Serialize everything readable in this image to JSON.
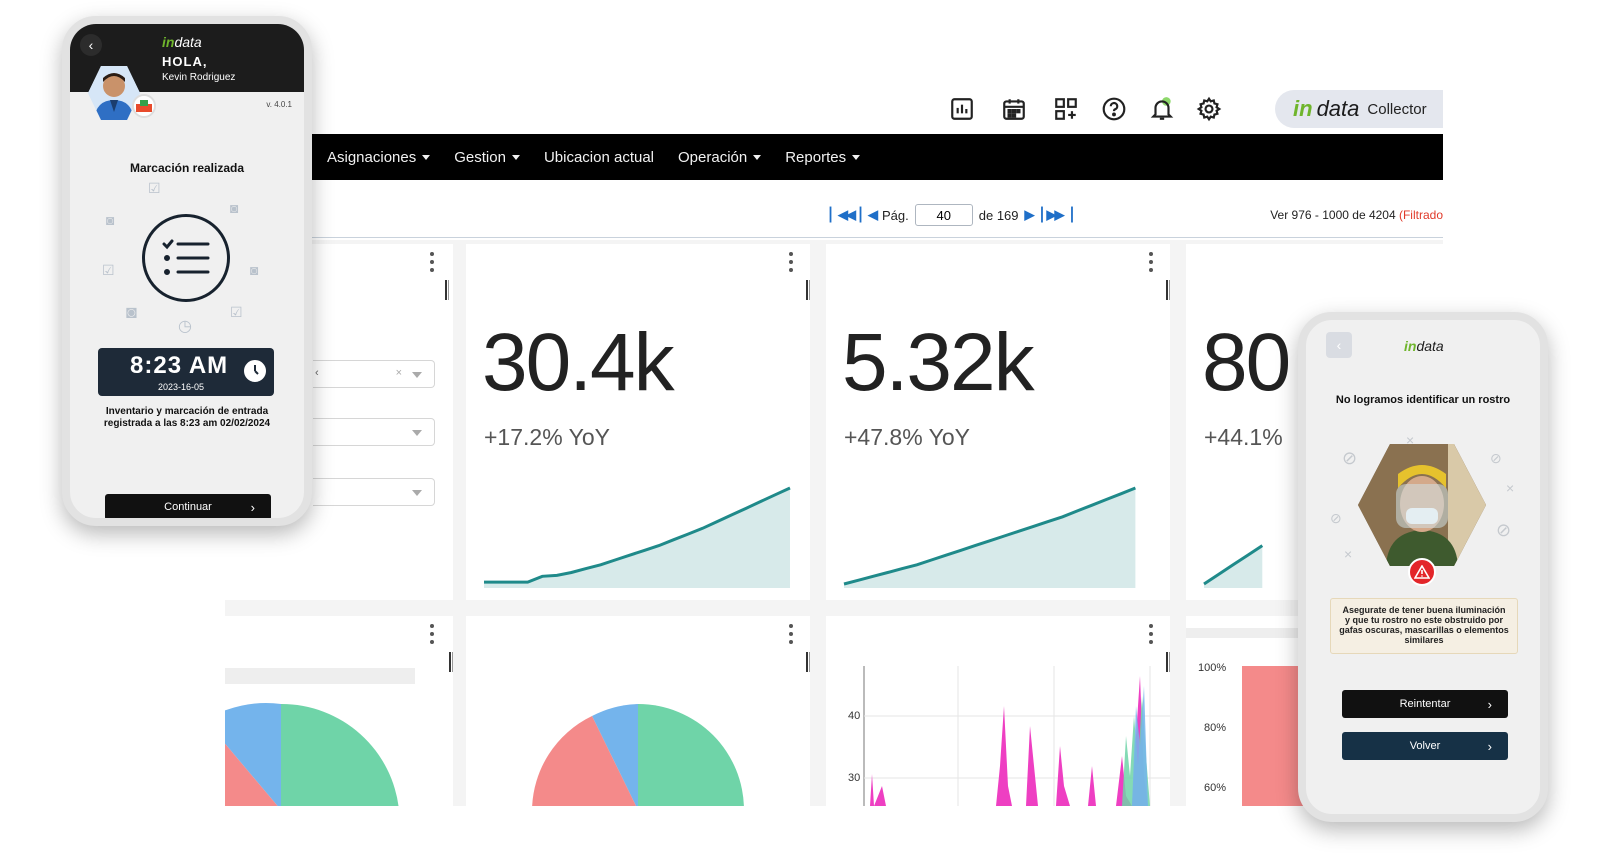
{
  "toolbar": {
    "icons": [
      "bar-chart-icon",
      "calendar-icon",
      "grid-add-icon",
      "help-icon",
      "bell-icon",
      "gear-icon"
    ],
    "brand_in": "in",
    "brand_data": "data",
    "brand_product": "Collector"
  },
  "navbar": {
    "items": [
      {
        "label": "Asignaciones",
        "dropdown": true
      },
      {
        "label": "Gestion",
        "dropdown": true
      },
      {
        "label": "Ubicacion actual",
        "dropdown": false
      },
      {
        "label": "Operación",
        "dropdown": true
      },
      {
        "label": "Reportes",
        "dropdown": true
      }
    ]
  },
  "pager": {
    "page_label": "Pág.",
    "page_value": "40",
    "of_label": "de 169",
    "records_text": "Ver 976 - 1000 de 4204",
    "filtered_text": "(Filtrado"
  },
  "kpis": [
    {
      "value": "30.4k",
      "yoy": "+17.2% YoY",
      "trend": [
        0.02,
        0.02,
        0.02,
        0.02,
        0.08,
        0.09,
        0.12,
        0.16,
        0.2,
        0.25,
        0.3,
        0.35,
        0.4,
        0.46,
        0.52,
        0.58,
        0.65,
        0.72,
        0.79,
        0.86,
        0.93,
        1.0
      ]
    },
    {
      "value": "5.32k",
      "yoy": "+47.8% YoY",
      "trend": [
        0.0,
        0.04,
        0.08,
        0.12,
        0.16,
        0.2,
        0.25,
        0.3,
        0.35,
        0.4,
        0.45,
        0.5,
        0.55,
        0.6,
        0.65,
        0.7,
        0.76,
        0.82,
        0.88,
        0.94,
        1.0
      ]
    },
    {
      "value": "80",
      "yoy": "+44.1%",
      "trend": [
        0.0,
        0.1,
        0.2,
        0.3,
        0.4
      ]
    }
  ],
  "charts": {
    "line_axis_ticks": [
      "40",
      "30"
    ],
    "bar_axis_ticks": [
      "100%",
      "80%",
      "60%"
    ]
  },
  "colors": {
    "teal": "#1f8a8a",
    "pie_green": "#6fd4a8",
    "pie_blue": "#74b4ec",
    "pie_red": "#f48a8a",
    "magenta": "#ee3fc2",
    "brand_green": "#6fb52c"
  },
  "phone_left": {
    "brand_in": "in",
    "brand_data": "data",
    "greeting": "HOLA,",
    "user_name": "Kevin Rodriguez",
    "version": "v. 4.0.1",
    "title": "Marcación realizada",
    "time": "8:23  AM",
    "date": "2023-16-05",
    "message": "Inventario y marcación de entrada registrada a las 8:23 am 02/02/2024",
    "cta": "Continuar"
  },
  "phone_right": {
    "brand_in": "in",
    "brand_data": "data",
    "title": "No logramos identificar un rostro",
    "tip": "Asegurate de tener buena iluminación y que tu rostro no este obstruido por gafas oscuras, mascarillas o elementos similares",
    "retry": "Reintentar",
    "back": "Volver"
  }
}
